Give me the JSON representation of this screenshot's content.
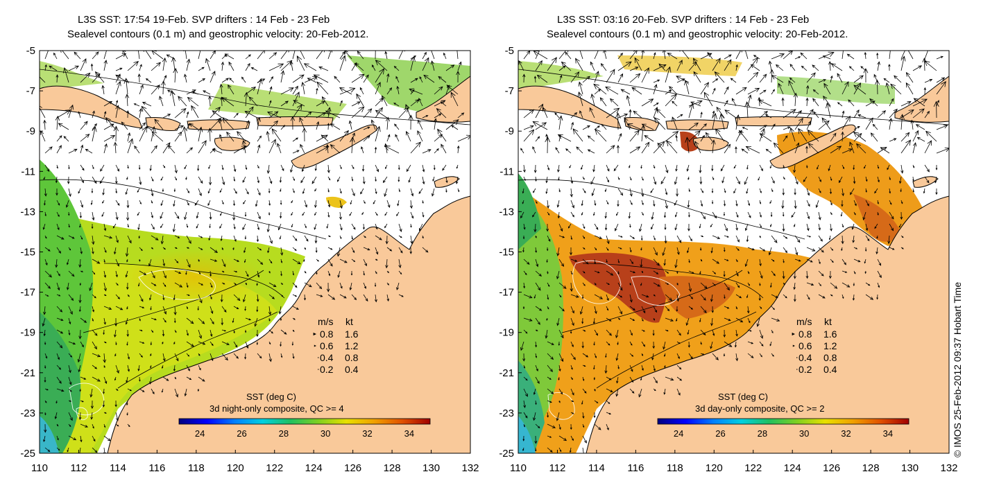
{
  "panels": [
    {
      "title_line1": "L3S SST: 17:54 19-Feb. SVP drifters : 14 Feb - 23 Feb",
      "title_line2": "Sealevel contours (0.1 m) and geostrophic velocity: 20-Feb-2012.",
      "cbar_title": "SST (deg C)",
      "cbar_subtitle": "3d night-only composite, QC >= 4",
      "theme": "night"
    },
    {
      "title_line1": "L3S SST: 03:16 20-Feb. SVP drifters : 14 Feb - 23 Feb",
      "title_line2": "Sealevel contours (0.1 m) and geostrophic velocity: 20-Feb-2012.",
      "cbar_title": "SST (deg C)",
      "cbar_subtitle": "3d day-only composite, QC >= 2",
      "theme": "day"
    }
  ],
  "axes": {
    "lon_ticks": [
      "110",
      "112",
      "114",
      "116",
      "118",
      "120",
      "122",
      "124",
      "126",
      "128",
      "130",
      "132"
    ],
    "lat_ticks": [
      "-5",
      "-7",
      "-9",
      "-11",
      "-13",
      "-15",
      "-17",
      "-19",
      "-21",
      "-23",
      "-25"
    ],
    "lon_range": [
      110,
      132
    ],
    "lat_range": [
      -25,
      -5
    ]
  },
  "colorbar": {
    "ticks": [
      "24",
      "26",
      "28",
      "30",
      "32",
      "34"
    ],
    "range": [
      23,
      35
    ]
  },
  "velocity_legend": {
    "header_ms": "m/s",
    "header_kt": "kt",
    "rows": [
      {
        "ms": "0.8",
        "kt": "1.6"
      },
      {
        "ms": "0.6",
        "kt": "1.2"
      },
      {
        "ms": "0.4",
        "kt": "0.8"
      },
      {
        "ms": "0.2",
        "kt": "0.4"
      }
    ]
  },
  "credit": "© IMOS 25-Feb-2012 09:37 Hobart Time",
  "colors": {
    "land": "#f9c99a",
    "coast": "#000000"
  }
}
